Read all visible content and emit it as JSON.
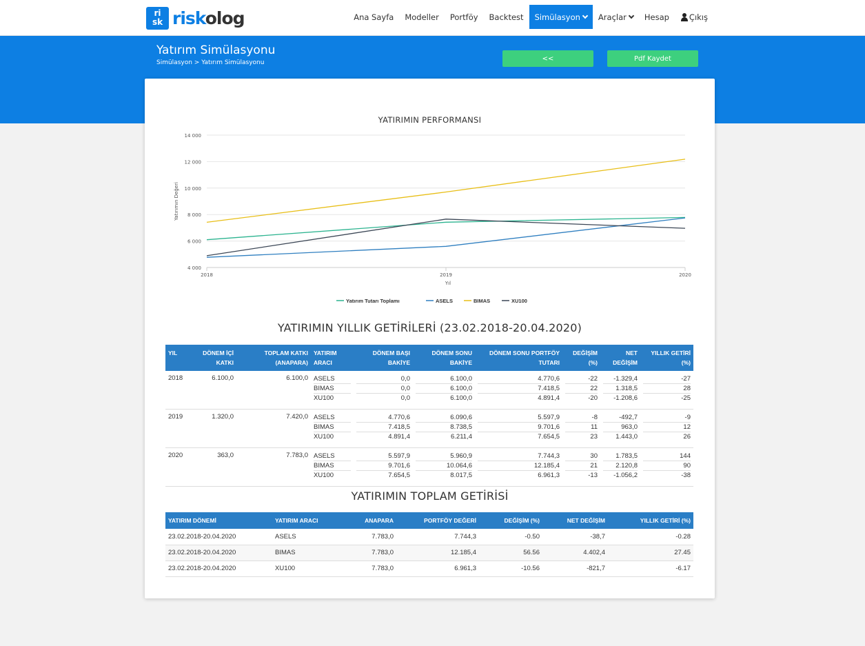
{
  "logo": {
    "box_top": "ri",
    "box_bottom": "sk",
    "text_a": "risk",
    "text_b": "olog"
  },
  "nav": {
    "items": [
      "Ana Sayfa",
      "Modeller",
      "Portföy",
      "Backtest",
      "Simülasyon",
      "Araçlar",
      "Hesap",
      "Çıkış"
    ],
    "active": "Simülasyon"
  },
  "header": {
    "title": "Yatırım Simülasyonu",
    "breadcrumb": "Simülasyon > Yatırım Simülasyonu",
    "back_button": "<<",
    "pdf_button": "Pdf Kaydet"
  },
  "colors": {
    "brand": "#0d7fe3",
    "green": "#3dd07e",
    "table_header": "#2a7ec6"
  },
  "chart_data": {
    "type": "line",
    "title": "YATIRIMIN PERFORMANSI",
    "xlabel": "Yıl",
    "ylabel": "Yatırımın Değeri",
    "categories": [
      "2018",
      "2019",
      "2020"
    ],
    "yticks": [
      "14 000",
      "12 000",
      "10 000",
      "8 000",
      "6 000",
      "4 000"
    ],
    "ylim": [
      4000,
      14000
    ],
    "legend_position": "bottom",
    "series": [
      {
        "name": "Yatırım Tutarı Toplamı",
        "color": "#2bb38f",
        "values": [
          6100,
          7420,
          7783
        ]
      },
      {
        "name": "ASELS",
        "color": "#2f7fc0",
        "values": [
          4770.6,
          5597.9,
          7744.3
        ]
      },
      {
        "name": "BIMAS",
        "color": "#e8be16",
        "values": [
          7418.5,
          9701.6,
          12185.4
        ]
      },
      {
        "name": "XU100",
        "color": "#3b4655",
        "values": [
          4891.4,
          7654.5,
          6961.3
        ]
      }
    ]
  },
  "annual": {
    "title": "YATIRIMIN YILLIK GETİRİLERİ (23.02.2018-20.04.2020)",
    "headers": [
      "YIL",
      "DÖNEM İÇİ KATKI",
      "TOPLAM KATKI (ANAPARA)",
      "YATIRIM ARACI",
      "DÖNEM BAŞI BAKİYE",
      "DÖNEM SONU BAKİYE",
      "DÖNEM SONU PORTFÖY TUTARI",
      "DEĞİŞİM (%)",
      "NET DEĞİŞİM",
      "YILLIK GETİRİ (%)"
    ],
    "groups": [
      {
        "year": "2018",
        "period": "6.100,0",
        "total": "6.100,0",
        "rows": [
          [
            "ASELS",
            "0,0",
            "6.100,0",
            "4.770,6",
            "-22",
            "-1.329,4",
            "-27"
          ],
          [
            "BIMAS",
            "0,0",
            "6.100,0",
            "7.418,5",
            "22",
            "1.318,5",
            "28"
          ],
          [
            "XU100",
            "0,0",
            "6.100,0",
            "4.891,4",
            "-20",
            "-1.208,6",
            "-25"
          ]
        ]
      },
      {
        "year": "2019",
        "period": "1.320,0",
        "total": "7.420,0",
        "rows": [
          [
            "ASELS",
            "4.770,6",
            "6.090,6",
            "5.597,9",
            "-8",
            "-492,7",
            "-9"
          ],
          [
            "BIMAS",
            "7.418,5",
            "8.738,5",
            "9.701,6",
            "11",
            "963,0",
            "12"
          ],
          [
            "XU100",
            "4.891,4",
            "6.211,4",
            "7.654,5",
            "23",
            "1.443,0",
            "26"
          ]
        ]
      },
      {
        "year": "2020",
        "period": "363,0",
        "total": "7.783,0",
        "rows": [
          [
            "ASELS",
            "5.597,9",
            "5.960,9",
            "7.744,3",
            "30",
            "1.783,5",
            "144"
          ],
          [
            "BIMAS",
            "9.701,6",
            "10.064,6",
            "12.185,4",
            "21",
            "2.120,8",
            "90"
          ],
          [
            "XU100",
            "7.654,5",
            "8.017,5",
            "6.961,3",
            "-13",
            "-1.056,2",
            "-38"
          ]
        ]
      }
    ]
  },
  "total": {
    "title": "YATIRIMIN TOPLAM GETİRİSİ",
    "headers": [
      "YATIRIM DÖNEMİ",
      "YATIRIM ARACI",
      "ANAPARA",
      "PORTFÖY DEĞERİ",
      "DEĞİŞİM (%)",
      "NET DEĞİŞİM",
      "YILLIK GETİRİ (%)"
    ],
    "rows": [
      [
        "23.02.2018-20.04.2020",
        "ASELS",
        "7.783,0",
        "7.744,3",
        "-0.50",
        "-38,7",
        "-0.28"
      ],
      [
        "23.02.2018-20.04.2020",
        "BIMAS",
        "7.783,0",
        "12.185,4",
        "56.56",
        "4.402,4",
        "27.45"
      ],
      [
        "23.02.2018-20.04.2020",
        "XU100",
        "7.783,0",
        "6.961,3",
        "-10.56",
        "-821,7",
        "-6.17"
      ]
    ]
  }
}
